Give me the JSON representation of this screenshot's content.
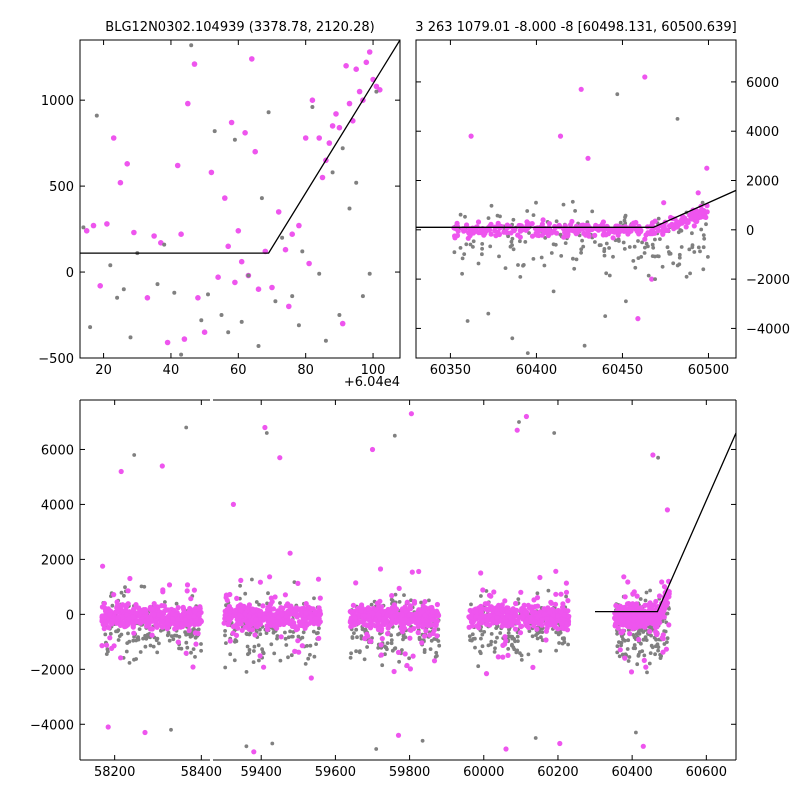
{
  "figure": {
    "title_left": "BLG12N0302.104939 (3378.78, 2120.28)",
    "title_right": "3 263 1079.01 -8.000 -8 [60498.131, 60500.639]",
    "offset_label": "+6.04e4"
  },
  "colors": {
    "primary_points": "#ee55ee",
    "secondary_points": "#808080",
    "model_line": "#000000"
  },
  "chart_data": [
    {
      "type": "scatter",
      "panel": "top-left zoom",
      "title": "BLG12N0302.104939 (3378.78, 2120.28)",
      "xlim": [
        13,
        108
      ],
      "ylim": [
        -500,
        1350
      ],
      "x_offset_label": "+6.04e4",
      "xticks": [
        20,
        40,
        60,
        80,
        100
      ],
      "xticklabels": [
        "20",
        "40",
        "60",
        "80",
        "100"
      ],
      "yticks": [
        -500,
        0,
        500,
        1000
      ],
      "yticklabels": [
        "−500",
        "0",
        "500",
        "1000"
      ],
      "model_line": [
        [
          13,
          110
        ],
        [
          69,
          110
        ],
        [
          108,
          1350
        ]
      ],
      "series": [
        {
          "color": "magenta",
          "x": [
            15,
            17,
            19,
            21,
            23,
            25,
            27,
            29,
            33,
            35,
            37,
            39,
            42,
            43,
            44,
            45,
            47,
            48,
            50,
            52,
            54,
            56,
            57,
            58,
            59,
            60,
            61,
            62,
            63,
            64,
            65,
            66,
            68,
            70,
            72,
            74,
            75,
            76,
            78,
            80,
            81,
            82,
            84,
            85,
            86,
            87,
            88,
            89,
            90,
            91,
            92,
            93,
            94,
            95,
            96,
            97,
            98,
            99,
            100,
            101,
            102
          ],
          "y": [
            240,
            270,
            -80,
            280,
            780,
            520,
            630,
            230,
            -150,
            210,
            170,
            -410,
            620,
            220,
            -390,
            980,
            1210,
            -150,
            -350,
            580,
            -30,
            430,
            150,
            870,
            -60,
            240,
            60,
            810,
            -20,
            1240,
            700,
            -100,
            120,
            -90,
            350,
            130,
            -200,
            220,
            270,
            780,
            50,
            1000,
            780,
            550,
            650,
            750,
            850,
            920,
            840,
            -300,
            1200,
            980,
            880,
            1180,
            1050,
            1000,
            1220,
            1280,
            1120,
            1080,
            1060
          ]
        },
        {
          "color": "gray",
          "x": [
            14,
            16,
            18,
            22,
            24,
            26,
            28,
            30,
            33,
            36,
            38,
            41,
            43,
            46,
            49,
            51,
            53,
            55,
            57,
            59,
            61,
            63,
            66,
            67,
            69,
            71,
            73,
            76,
            78,
            79,
            82,
            84,
            86,
            88,
            90,
            91,
            93,
            95,
            97,
            99,
            101
          ],
          "y": [
            260,
            -320,
            910,
            40,
            -150,
            -100,
            -380,
            110,
            -510,
            -70,
            160,
            -120,
            -480,
            1320,
            -280,
            -130,
            820,
            -250,
            -350,
            770,
            -290,
            -20,
            -430,
            430,
            930,
            -170,
            200,
            -140,
            -310,
            120,
            960,
            -10,
            -400,
            580,
            -250,
            720,
            370,
            520,
            -140,
            -10,
            1050
          ]
        }
      ]
    },
    {
      "type": "scatter",
      "panel": "top-right zoom",
      "title": "3 263 1079.01 -8.000 -8 [60498.131, 60500.639]",
      "xlim": [
        60330,
        60516
      ],
      "ylim": [
        -5200,
        7700
      ],
      "xticks": [
        60350,
        60400,
        60450,
        60500
      ],
      "xticklabels": [
        "60350",
        "60400",
        "60450",
        "60500"
      ],
      "yticks": [
        -4000,
        -2000,
        0,
        2000,
        4000,
        6000
      ],
      "yticklabels": [
        "−4000",
        "−2000",
        "0",
        "2000",
        "4000",
        "6000"
      ],
      "model_line": [
        [
          60330,
          100
        ],
        [
          60468,
          100
        ],
        [
          60516,
          1600
        ]
      ],
      "series": [
        {
          "color": "magenta",
          "x": [
            60362,
            60426,
            60430,
            60414,
            60463,
            60494,
            60474,
            60490,
            60478,
            60459,
            60467,
            60499
          ],
          "y": [
            3800,
            5700,
            2900,
            3800,
            6200,
            1500,
            1100,
            600,
            500,
            -3600,
            -2000,
            2500
          ]
        },
        {
          "color": "gray",
          "x": [
            60360,
            60372,
            60386,
            60395,
            60410,
            60428,
            60440,
            60447,
            60452,
            60469,
            60482,
            60497
          ],
          "y": [
            -3700,
            -3400,
            -4400,
            -5000,
            -2500,
            -4700,
            -3500,
            5500,
            -2900,
            -2000,
            4500,
            -1600
          ]
        }
      ],
      "dense_bands": [
        {
          "color": "magenta",
          "x_range": [
            60352,
            60500
          ],
          "y_range": [
            -600,
            700
          ]
        },
        {
          "color": "gray",
          "x_range": [
            60352,
            60500
          ],
          "y_range": [
            -3000,
            1500
          ]
        }
      ]
    },
    {
      "type": "scatter",
      "panel": "bottom full light curve",
      "xlim": [
        58120,
        60680
      ],
      "ylim": [
        -5300,
        7800
      ],
      "xticks": [
        58200,
        58400,
        59400,
        59600,
        59800,
        60000,
        60200,
        60400,
        60600
      ],
      "xticklabels": [
        "58200",
        "58400",
        "59400",
        "59600",
        "59800",
        "60000",
        "60200",
        "60400",
        "60600"
      ],
      "axis_break": [
        58420,
        59270
      ],
      "yticks": [
        -4000,
        -2000,
        0,
        2000,
        4000,
        6000
      ],
      "yticklabels": [
        "−4000",
        "−2000",
        "0",
        "2000",
        "4000",
        "6000"
      ],
      "model_line": [
        [
          60300,
          100
        ],
        [
          60468,
          100
        ],
        [
          60680,
          6600
        ]
      ],
      "seasons": [
        {
          "x_range": [
            58170,
            58400
          ],
          "outliers": [
            [
              58215,
              5200
            ],
            [
              58245,
              5800
            ],
            [
              58310,
              5400
            ],
            [
              58365,
              6800
            ],
            [
              58270,
              -4300
            ],
            [
              58330,
              -4200
            ],
            [
              58185,
              -4100
            ]
          ]
        },
        {
          "x_range": [
            59300,
            59560
          ],
          "outliers": [
            [
              59410,
              6800
            ],
            [
              59415,
              6600
            ],
            [
              59450,
              5700
            ],
            [
              59360,
              -4800
            ],
            [
              59380,
              -5000
            ],
            [
              59430,
              -4700
            ],
            [
              59325,
              4000
            ]
          ]
        },
        {
          "x_range": [
            59640,
            59880
          ],
          "outliers": [
            [
              59700,
              6000
            ],
            [
              59760,
              6500
            ],
            [
              59805,
              7300
            ],
            [
              59710,
              -4900
            ],
            [
              59770,
              -4400
            ],
            [
              59835,
              -4600
            ]
          ]
        },
        {
          "x_range": [
            59960,
            60230
          ],
          "outliers": [
            [
              60090,
              6700
            ],
            [
              60095,
              7000
            ],
            [
              60115,
              7200
            ],
            [
              60190,
              6600
            ],
            [
              60060,
              -4900
            ],
            [
              60140,
              -4500
            ],
            [
              60205,
              -4700
            ]
          ]
        },
        {
          "x_range": [
            60352,
            60500
          ],
          "outliers": [
            [
              60456,
              5800
            ],
            [
              60470,
              5700
            ],
            [
              60495,
              3800
            ],
            [
              60410,
              -4300
            ],
            [
              60430,
              -4800
            ]
          ]
        }
      ]
    }
  ]
}
